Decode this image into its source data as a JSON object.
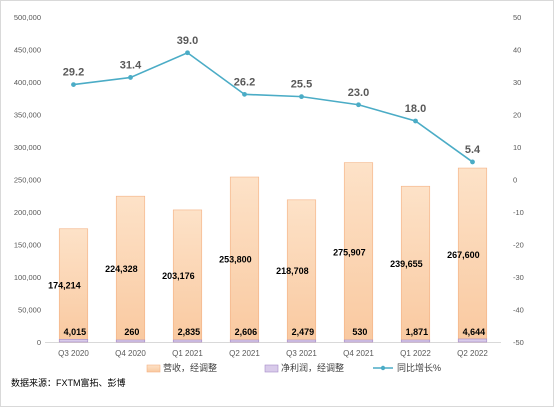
{
  "chart_data": {
    "type": "bar",
    "categories": [
      "Q3 2020",
      "Q4 2020",
      "Q1 2021",
      "Q2 2021",
      "Q3 2021",
      "Q4 2021",
      "Q1 2022",
      "Q2 2022"
    ],
    "series": [
      {
        "name": "营收，经调整",
        "type": "bar",
        "axis": "left",
        "values": [
          174214,
          224328,
          203176,
          253800,
          218708,
          275907,
          239655,
          267600
        ],
        "labels": [
          "174,214",
          "224,328",
          "203,176",
          "253,800",
          "218,708",
          "275,907",
          "239,655",
          "267,600"
        ],
        "color": "#f9c9a0"
      },
      {
        "name": "净利润，经调整",
        "type": "bar",
        "axis": "left",
        "values": [
          4015,
          260,
          2835,
          2606,
          2479,
          530,
          1871,
          4644
        ],
        "labels": [
          "4,015",
          "260",
          "2,835",
          "2,606",
          "2,479",
          "530",
          "1,871",
          "4,644"
        ],
        "color": "#d9cbea"
      },
      {
        "name": "同比增长%",
        "type": "line",
        "axis": "right",
        "values": [
          29.2,
          31.4,
          39.0,
          26.2,
          25.5,
          23.0,
          18.0,
          5.4
        ],
        "labels": [
          "29.2",
          "31.4",
          "39.0",
          "26.2",
          "25.5",
          "23.0",
          "18.0",
          "5.4"
        ],
        "color": "#4bacc6"
      }
    ],
    "y_left": {
      "min": 0,
      "max": 500000,
      "ticks": [
        "0",
        "50,000",
        "100,000",
        "150,000",
        "200,000",
        "250,000",
        "300,000",
        "350,000",
        "400,000",
        "450,000",
        "500,000"
      ]
    },
    "y_right": {
      "min": -50,
      "max": 50,
      "ticks": [
        "-50",
        "-40",
        "-30",
        "-20",
        "-10",
        "0",
        "10",
        "20",
        "30",
        "40",
        "50"
      ]
    },
    "legend_position": "bottom",
    "grid": false,
    "source": "数据来源：FXTM富拓、彭博"
  }
}
